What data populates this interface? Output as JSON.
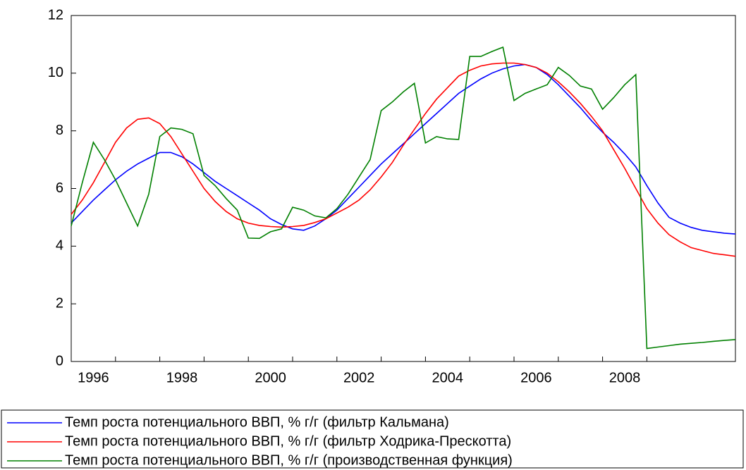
{
  "chart_data": {
    "type": "line",
    "x": [
      1996,
      1996.25,
      1996.5,
      1996.75,
      1997,
      1997.25,
      1997.5,
      1997.75,
      1998,
      1998.25,
      1998.5,
      1998.75,
      1999,
      1999.25,
      1999.5,
      1999.75,
      2000,
      2000.25,
      2000.5,
      2000.75,
      2001,
      2001.25,
      2001.5,
      2001.75,
      2002,
      2002.25,
      2002.5,
      2002.75,
      2003,
      2003.25,
      2003.5,
      2003.75,
      2004,
      2004.25,
      2004.5,
      2004.75,
      2005,
      2005.25,
      2005.5,
      2005.75,
      2006,
      2006.25,
      2006.5,
      2006.75,
      2007,
      2007.25,
      2007.5,
      2007.75,
      2008,
      2008.25,
      2008.5,
      2008.75,
      2009,
      2009.25,
      2009.5,
      2009.75,
      2010,
      2010.25,
      2010.5,
      2010.75,
      2011
    ],
    "series": [
      {
        "name": "Темп роста потенциального ВВП, % г/г (фильтр Кальмана)",
        "color": "#0000ff",
        "values": [
          4.8,
          5.2,
          5.6,
          5.95,
          6.3,
          6.6,
          6.85,
          7.05,
          7.25,
          7.25,
          7.1,
          6.85,
          6.55,
          6.25,
          6.0,
          5.75,
          5.5,
          5.25,
          4.95,
          4.75,
          4.6,
          4.55,
          4.7,
          4.95,
          5.25,
          5.65,
          6.05,
          6.45,
          6.85,
          7.2,
          7.55,
          7.9,
          8.25,
          8.6,
          8.95,
          9.3,
          9.55,
          9.8,
          10.0,
          10.15,
          10.25,
          10.3,
          10.2,
          9.95,
          9.6,
          9.2,
          8.8,
          8.35,
          7.95,
          7.6,
          7.2,
          6.75,
          6.1,
          5.5,
          5.0,
          4.8,
          4.65,
          4.55,
          4.5,
          4.45,
          4.42
        ]
      },
      {
        "name": "Темп роста потенциального ВВП, % г/г (фильтр Ходрика-Прескотта)",
        "color": "#ff0000",
        "values": [
          5.1,
          5.6,
          6.2,
          6.9,
          7.6,
          8.1,
          8.4,
          8.45,
          8.25,
          7.8,
          7.2,
          6.6,
          6.0,
          5.55,
          5.2,
          4.95,
          4.8,
          4.72,
          4.68,
          4.66,
          4.68,
          4.72,
          4.82,
          4.95,
          5.15,
          5.35,
          5.6,
          5.95,
          6.4,
          6.9,
          7.5,
          8.05,
          8.6,
          9.1,
          9.5,
          9.9,
          10.1,
          10.25,
          10.32,
          10.35,
          10.35,
          10.3,
          10.2,
          10.0,
          9.7,
          9.35,
          8.95,
          8.5,
          8.0,
          7.35,
          6.7,
          6.0,
          5.3,
          4.8,
          4.4,
          4.15,
          3.95,
          3.85,
          3.75,
          3.7,
          3.65
        ]
      },
      {
        "name": "Темп роста потенциального ВВП, % г/г (производственная функция)",
        "color": "#008000",
        "values": [
          4.7,
          6.2,
          7.6,
          7.0,
          6.3,
          5.5,
          4.7,
          5.8,
          7.8,
          8.1,
          8.05,
          7.9,
          6.45,
          6.1,
          5.65,
          5.25,
          4.28,
          4.27,
          4.5,
          4.6,
          5.35,
          5.25,
          5.05,
          4.98,
          5.3,
          5.8,
          6.4,
          7.0,
          8.7,
          9.0,
          9.35,
          9.65,
          7.58,
          7.8,
          7.72,
          7.7,
          10.58,
          10.58,
          10.75,
          10.9,
          9.05,
          9.3,
          9.45,
          9.6,
          10.2,
          9.92,
          9.55,
          9.45,
          8.75,
          9.15,
          9.6,
          9.95,
          0.45,
          0.5,
          0.55,
          0.6,
          0.63,
          0.66,
          0.7,
          0.73,
          0.76
        ]
      }
    ],
    "xlim": [
      1996,
      2011
    ],
    "xticks": [
      1996,
      1998,
      2000,
      2002,
      2004,
      2006,
      2008
    ],
    "ylim": [
      0,
      12
    ],
    "yticks": [
      0,
      2,
      4,
      6,
      8,
      10,
      12
    ],
    "grid": false,
    "legend": "bottom"
  }
}
